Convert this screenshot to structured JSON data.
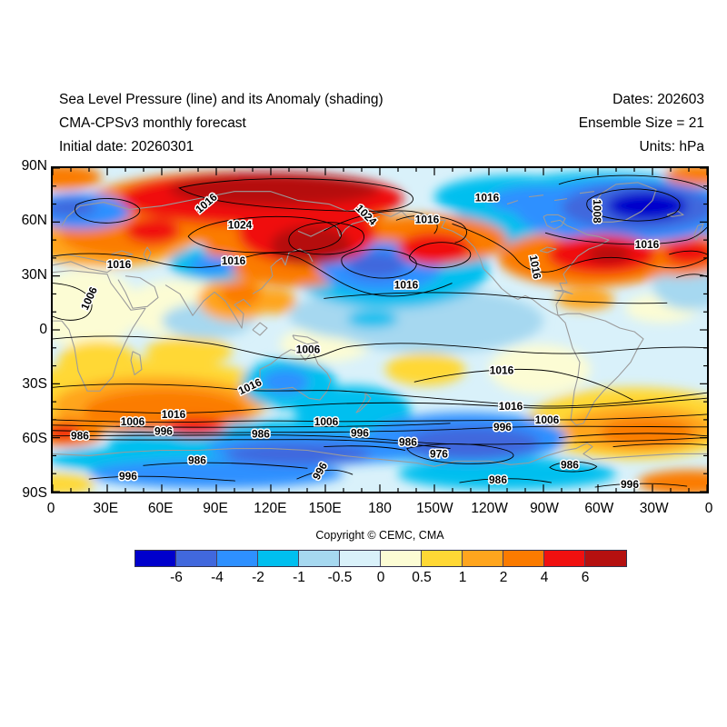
{
  "header": {
    "left_lines": [
      "Sea Level Pressure (line) and its Anomaly (shading)",
      "CMA-CPSv3 monthly forecast",
      "Initial date: 20260301"
    ],
    "right_lines": [
      "Dates: 202603",
      "Ensemble Size = 21",
      "Units: hPa"
    ]
  },
  "footer": {
    "copyright": "Copyright © CEMC, CMA"
  },
  "chart_data": {
    "type": "filled_contour_map",
    "title": "Sea Level Pressure (line) and its Anomaly (shading)",
    "model": "CMA-CPSv3 monthly forecast",
    "initial_date": "20260301",
    "valid_dates": "202603",
    "ensemble_size": 21,
    "units": "hPa",
    "projection": "equirectangular, global, 0E eastward to 0E",
    "lon_range": [
      0,
      360
    ],
    "lat_range": [
      -90,
      90
    ],
    "lon_axis": {
      "ticks": [
        "0",
        "30E",
        "60E",
        "90E",
        "120E",
        "150E",
        "180",
        "150W",
        "120W",
        "90W",
        "60W",
        "30W",
        "0"
      ]
    },
    "lat_axis": {
      "ticks": [
        "90N",
        "60N",
        "30N",
        "0",
        "30S",
        "60S",
        "90S"
      ]
    },
    "colorbar": {
      "levels": [
        "-6",
        "-4",
        "-2",
        "-1",
        "-0.5",
        "0",
        "0.5",
        "1",
        "2",
        "4",
        "6"
      ],
      "colors": [
        "#0000CC",
        "#4168DD",
        "#2E90FF",
        "#00BFEF",
        "#A6D8F0",
        "#D9F1FA",
        "#FCFCD4",
        "#FFD835",
        "#FFA51E",
        "#FB7B00",
        "#F01010",
        "#B51010"
      ]
    },
    "contour_values_labeled": [
      976,
      986,
      996,
      1006,
      1008,
      1016,
      1024
    ],
    "contour_labels": [
      {
        "t": "1016",
        "lon": 84.5,
        "lat": 70.5,
        "rot": -40
      },
      {
        "t": "1024",
        "lon": 103,
        "lat": 58.5,
        "rot": 0
      },
      {
        "t": "1016",
        "lon": 99.5,
        "lat": 38.5,
        "rot": 0
      },
      {
        "t": "1016",
        "lon": 36.5,
        "lat": 36.5,
        "rot": 0
      },
      {
        "t": "1006",
        "lon": 20,
        "lat": 17.5,
        "rot": -65
      },
      {
        "t": "1024",
        "lon": 172.5,
        "lat": 64,
        "rot": 45
      },
      {
        "t": "1016",
        "lon": 206,
        "lat": 61.5,
        "rot": 0
      },
      {
        "t": "1016",
        "lon": 239,
        "lat": 73.5,
        "rot": 0
      },
      {
        "t": "1008",
        "lon": 299.5,
        "lat": 66,
        "rot": 90
      },
      {
        "t": "1016",
        "lon": 327,
        "lat": 47.5,
        "rot": 0
      },
      {
        "t": "1016",
        "lon": 194.5,
        "lat": 25,
        "rot": 0
      },
      {
        "t": "1016",
        "lon": 265.5,
        "lat": 35,
        "rot": 80
      },
      {
        "t": "1006",
        "lon": 140.5,
        "lat": -11,
        "rot": 0
      },
      {
        "t": "1016",
        "lon": 108.5,
        "lat": -31.5,
        "rot": -25
      },
      {
        "t": "1016",
        "lon": 66.5,
        "lat": -47,
        "rot": 0
      },
      {
        "t": "1006",
        "lon": 44,
        "lat": -51,
        "rot": 0
      },
      {
        "t": "996",
        "lon": 61,
        "lat": -56.5,
        "rot": 0
      },
      {
        "t": "986",
        "lon": 15,
        "lat": -59,
        "rot": 0
      },
      {
        "t": "986",
        "lon": 114.5,
        "lat": -58,
        "rot": 0
      },
      {
        "t": "1006",
        "lon": 150.5,
        "lat": -51,
        "rot": 0
      },
      {
        "t": "996",
        "lon": 169,
        "lat": -57.5,
        "rot": 0
      },
      {
        "t": "986",
        "lon": 79.5,
        "lat": -72.5,
        "rot": 0
      },
      {
        "t": "996",
        "lon": 41.5,
        "lat": -81.5,
        "rot": 0
      },
      {
        "t": "996",
        "lon": 147,
        "lat": -78.5,
        "rot": -60
      },
      {
        "t": "1016",
        "lon": 247,
        "lat": -22.5,
        "rot": 0
      },
      {
        "t": "1016",
        "lon": 252,
        "lat": -42.5,
        "rot": 0
      },
      {
        "t": "1006",
        "lon": 272,
        "lat": -50,
        "rot": 0
      },
      {
        "t": "996",
        "lon": 247.5,
        "lat": -54,
        "rot": 0
      },
      {
        "t": "986",
        "lon": 195.5,
        "lat": -62.5,
        "rot": 0
      },
      {
        "t": "976",
        "lon": 212.5,
        "lat": -69,
        "rot": 0
      },
      {
        "t": "986",
        "lon": 284.5,
        "lat": -75,
        "rot": 0
      },
      {
        "t": "986",
        "lon": 245,
        "lat": -83.5,
        "rot": 0
      },
      {
        "t": "996",
        "lon": 317.5,
        "lat": -86,
        "rot": 0
      }
    ],
    "anomaly_regions": [
      {
        "c": [
          18,
          12
        ],
        "r": [
          30,
          22
        ],
        "v": 0.25
      },
      {
        "c": [
          70,
          12
        ],
        "r": [
          32,
          16
        ],
        "v": 0.25
      },
      {
        "c": [
          150,
          -8
        ],
        "r": [
          25,
          10
        ],
        "v": 0.25
      },
      {
        "c": [
          268,
          -22
        ],
        "r": [
          28,
          14
        ],
        "v": 0.25
      },
      {
        "c": [
          335,
          12
        ],
        "r": [
          20,
          8
        ],
        "v": 0.25
      },
      {
        "c": [
          25,
          -18
        ],
        "r": [
          22,
          12
        ],
        "v": 0.75
      },
      {
        "c": [
          75,
          -12
        ],
        "r": [
          24,
          8
        ],
        "v": 0.75
      },
      {
        "c": [
          205,
          -22
        ],
        "r": [
          22,
          9
        ],
        "v": 0.75
      },
      {
        "c": [
          50,
          -36
        ],
        "r": [
          75,
          20
        ],
        "v": 0.75
      },
      {
        "c": [
          320,
          -52
        ],
        "r": [
          60,
          20
        ],
        "v": 0.75
      },
      {
        "c": [
          3,
          -86
        ],
        "r": [
          20,
          6
        ],
        "v": 0.75
      },
      {
        "c": [
          168,
          8
        ],
        "r": [
          38,
          13
        ],
        "v": -0.75
      },
      {
        "c": [
          210,
          5
        ],
        "r": [
          60,
          18
        ],
        "v": -0.75
      },
      {
        "c": [
          85,
          5
        ],
        "r": [
          25,
          10
        ],
        "v": -0.75
      },
      {
        "c": [
          350,
          25
        ],
        "r": [
          20,
          14
        ],
        "v": -0.75
      },
      {
        "c": [
          30,
          52
        ],
        "r": [
          48,
          17
        ],
        "v": 1.5
      },
      {
        "c": [
          100,
          17
        ],
        "r": [
          20,
          12
        ],
        "v": 1.5
      },
      {
        "c": [
          122,
          16
        ],
        "r": [
          12,
          7
        ],
        "v": 1.5
      },
      {
        "c": [
          293,
          17
        ],
        "r": [
          16,
          6
        ],
        "v": 1.5
      },
      {
        "c": [
          58,
          -42
        ],
        "r": [
          58,
          16
        ],
        "v": 1.5
      },
      {
        "c": [
          322,
          -55
        ],
        "r": [
          42,
          13
        ],
        "v": 1.5
      },
      {
        "c": [
          255,
          74
        ],
        "r": [
          45,
          12
        ],
        "v": -1.5
      },
      {
        "c": [
          185,
          34
        ],
        "r": [
          55,
          22
        ],
        "v": -1.5
      },
      {
        "c": [
          90,
          37
        ],
        "r": [
          26,
          10
        ],
        "v": -1.5
      },
      {
        "c": [
          176,
          6
        ],
        "r": [
          14,
          5
        ],
        "v": -1.5
      },
      {
        "c": [
          130,
          -30
        ],
        "r": [
          26,
          14
        ],
        "v": -1.5
      },
      {
        "c": [
          165,
          -45
        ],
        "r": [
          32,
          14
        ],
        "v": -1.5
      },
      {
        "c": [
          150,
          -62
        ],
        "r": [
          120,
          12
        ],
        "v": -1.5
      },
      {
        "c": [
          45,
          -72
        ],
        "r": [
          48,
          7
        ],
        "v": -1.5
      },
      {
        "c": [
          250,
          -80
        ],
        "r": [
          60,
          9
        ],
        "v": -1.5
      },
      {
        "c": [
          302,
          62
        ],
        "r": [
          80,
          26
        ],
        "v": -1.5
      },
      {
        "c": [
          100,
          68
        ],
        "r": [
          85,
          20
        ],
        "v": 2.5
      },
      {
        "c": [
          38,
          53
        ],
        "r": [
          34,
          12
        ],
        "v": 2.5
      },
      {
        "c": [
          5,
          85
        ],
        "r": [
          22,
          7
        ],
        "v": 2.5
      },
      {
        "c": [
          135,
          50
        ],
        "r": [
          52,
          26
        ],
        "v": 2.5
      },
      {
        "c": [
          205,
          50
        ],
        "r": [
          45,
          14
        ],
        "v": 2.5
      },
      {
        "c": [
          295,
          40
        ],
        "r": [
          50,
          16
        ],
        "v": 2.5
      },
      {
        "c": [
          346,
          42
        ],
        "r": [
          26,
          12
        ],
        "v": 2.5
      },
      {
        "c": [
          355,
          86
        ],
        "r": [
          18,
          6
        ],
        "v": 2.5
      },
      {
        "c": [
          62,
          -45
        ],
        "r": [
          45,
          12
        ],
        "v": 2.5
      },
      {
        "c": [
          103,
          20
        ],
        "r": [
          11,
          7
        ],
        "v": 2.5
      },
      {
        "c": [
          327,
          -57
        ],
        "r": [
          26,
          8
        ],
        "v": 2.5
      },
      {
        "c": [
          8,
          -57
        ],
        "r": [
          20,
          8
        ],
        "v": 2.5
      },
      {
        "c": [
          350,
          -85
        ],
        "r": [
          28,
          7
        ],
        "v": 2.5
      },
      {
        "c": [
          15,
          66
        ],
        "r": [
          28,
          10
        ],
        "v": -3
      },
      {
        "c": [
          88,
          36
        ],
        "r": [
          13,
          5
        ],
        "v": -3
      },
      {
        "c": [
          180,
          35
        ],
        "r": [
          34,
          14
        ],
        "v": -3
      },
      {
        "c": [
          268,
          72
        ],
        "r": [
          28,
          8
        ],
        "v": -3
      },
      {
        "c": [
          315,
          66
        ],
        "r": [
          60,
          18
        ],
        "v": -3
      },
      {
        "c": [
          128,
          -29
        ],
        "r": [
          13,
          7
        ],
        "v": -3
      },
      {
        "c": [
          228,
          -60
        ],
        "r": [
          55,
          14
        ],
        "v": -3
      },
      {
        "c": [
          145,
          -66
        ],
        "r": [
          60,
          9
        ],
        "v": -3
      },
      {
        "c": [
          90,
          -80
        ],
        "r": [
          70,
          8
        ],
        "v": -3
      },
      {
        "c": [
          115,
          73
        ],
        "r": [
          78,
          15
        ],
        "v": 5
      },
      {
        "c": [
          55,
          55
        ],
        "r": [
          15,
          7
        ],
        "v": 5
      },
      {
        "c": [
          140,
          54
        ],
        "r": [
          38,
          18
        ],
        "v": 5
      },
      {
        "c": [
          210,
          45
        ],
        "r": [
          20,
          9
        ],
        "v": 5
      },
      {
        "c": [
          302,
          42
        ],
        "r": [
          30,
          11
        ],
        "v": 5
      },
      {
        "c": [
          350,
          43
        ],
        "r": [
          14,
          7
        ],
        "v": 5
      },
      {
        "c": [
          78,
          -54
        ],
        "r": [
          17,
          5
        ],
        "v": 5
      },
      {
        "c": [
          6,
          -57
        ],
        "r": [
          9,
          4
        ],
        "v": 5
      },
      {
        "c": [
          10,
          68
        ],
        "r": [
          14,
          5
        ],
        "v": -5
      },
      {
        "c": [
          178,
          36
        ],
        "r": [
          16,
          7
        ],
        "v": -5
      },
      {
        "c": [
          322,
          68
        ],
        "r": [
          42,
          13
        ],
        "v": -5
      },
      {
        "c": [
          135,
          -69
        ],
        "r": [
          40,
          6
        ],
        "v": -5
      },
      {
        "c": [
          230,
          -63
        ],
        "r": [
          38,
          9
        ],
        "v": -5
      },
      {
        "c": [
          122,
          78
        ],
        "r": [
          58,
          9
        ],
        "v": 7
      },
      {
        "c": [
          142,
          47
        ],
        "r": [
          22,
          11
        ],
        "v": 7
      },
      {
        "c": [
          306,
          42
        ],
        "r": [
          12,
          5
        ],
        "v": 7
      },
      {
        "c": [
          327,
          69
        ],
        "r": [
          22,
          8
        ],
        "v": -7
      }
    ]
  }
}
